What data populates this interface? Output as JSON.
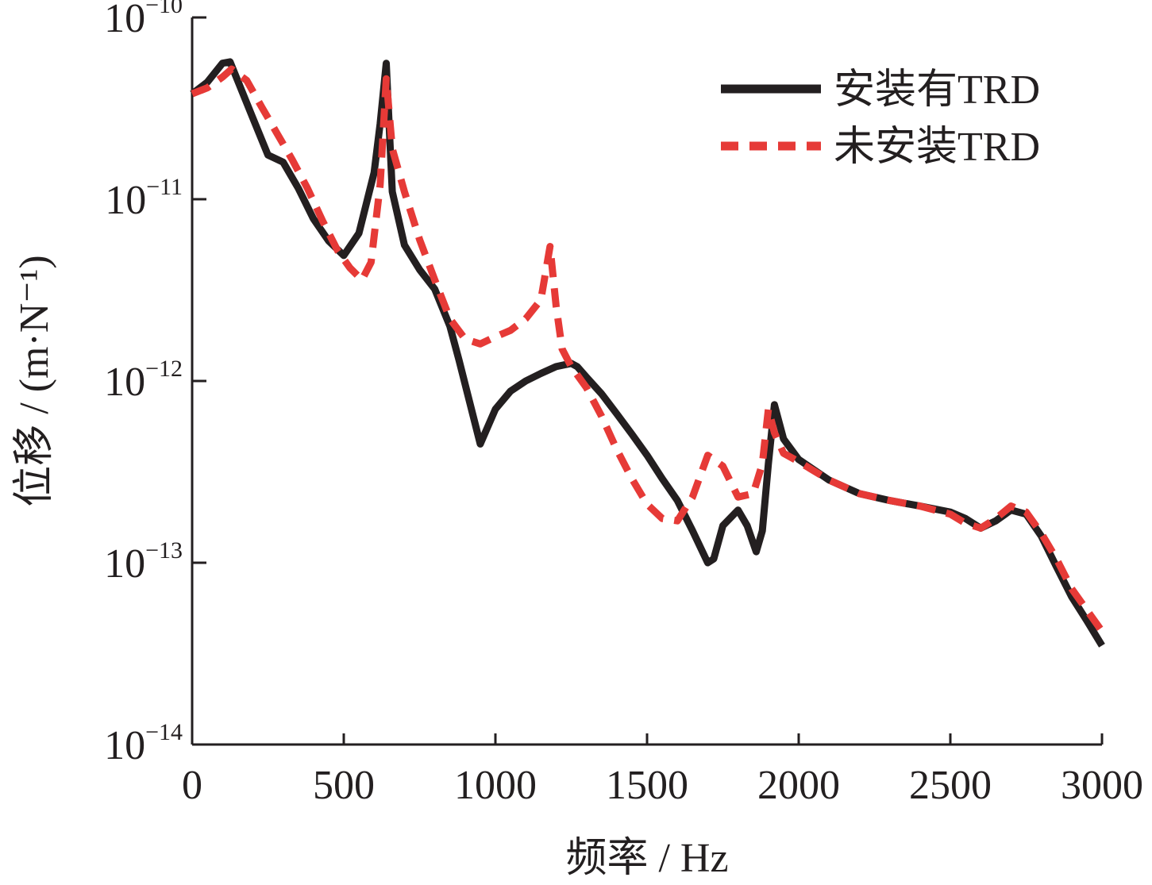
{
  "chart_data": {
    "type": "line",
    "xlabel": "频率 / Hz",
    "ylabel": "位移 / (m·N⁻¹)",
    "xlim": [
      0,
      3000
    ],
    "ylim": [
      1e-14,
      1e-10
    ],
    "yscale": "log",
    "x_ticks": [
      0,
      500,
      1000,
      1500,
      2000,
      2500,
      3000
    ],
    "x_tick_labels": [
      "0",
      "500",
      "1000",
      "1500",
      "2000",
      "2500",
      "3000"
    ],
    "y_ticks": [
      {
        "value": 1e-14,
        "base": "10",
        "exp": "−14"
      },
      {
        "value": 1e-13,
        "base": "10",
        "exp": "−13"
      },
      {
        "value": 1e-12,
        "base": "10",
        "exp": "−12"
      },
      {
        "value": 1e-11,
        "base": "10",
        "exp": "−11"
      },
      {
        "value": 1e-10,
        "base": "10",
        "exp": "−10"
      }
    ],
    "grid": false,
    "legend_position": "top-right",
    "series": [
      {
        "name": "安装有TRD",
        "color": "#231f20",
        "style": "solid",
        "x": [
          0,
          50,
          100,
          125,
          150,
          200,
          250,
          300,
          350,
          400,
          450,
          500,
          550,
          600,
          620,
          640,
          660,
          700,
          750,
          800,
          850,
          880,
          950,
          1000,
          1050,
          1100,
          1150,
          1200,
          1250,
          1270,
          1300,
          1350,
          1400,
          1450,
          1500,
          1550,
          1600,
          1650,
          1700,
          1720,
          1750,
          1800,
          1830,
          1860,
          1880,
          1900,
          1920,
          1950,
          2000,
          2100,
          2200,
          2300,
          2400,
          2500,
          2550,
          2600,
          2650,
          2700,
          2750,
          2800,
          2850,
          2900,
          2950,
          3000
        ],
        "y": [
          3.8e-11,
          4.4e-11,
          5.6e-11,
          5.7e-11,
          4.5e-11,
          2.8e-11,
          1.75e-11,
          1.6e-11,
          1.15e-11,
          7.8e-12,
          5.9e-12,
          4.9e-12,
          6.5e-12,
          1.4e-11,
          2.6e-11,
          5.6e-11,
          1.1e-11,
          5.6e-12,
          4.1e-12,
          3.2e-12,
          2e-12,
          1.3e-12,
          4.5e-13,
          7e-13,
          8.8e-13,
          1e-12,
          1.1e-12,
          1.2e-12,
          1.25e-12,
          1.2e-12,
          1.05e-12,
          8.5e-13,
          6.6e-13,
          5.1e-13,
          3.9e-13,
          2.9e-13,
          2.2e-13,
          1.5e-13,
          1e-13,
          1.05e-13,
          1.6e-13,
          1.95e-13,
          1.6e-13,
          1.15e-13,
          1.5e-13,
          3.5e-13,
          7.4e-13,
          4.8e-13,
          3.7e-13,
          2.85e-13,
          2.4e-13,
          2.2e-13,
          2.05e-13,
          1.9e-13,
          1.75e-13,
          1.55e-13,
          1.7e-13,
          1.95e-13,
          1.85e-13,
          1.4e-13,
          9.5e-14,
          6.5e-14,
          4.8e-14,
          3.5e-14
        ]
      },
      {
        "name": "未安装TRD",
        "color": "#e63a37",
        "style": "dashed",
        "x": [
          0,
          50,
          100,
          130,
          180,
          230,
          280,
          330,
          380,
          430,
          480,
          520,
          560,
          590,
          620,
          640,
          660,
          700,
          750,
          800,
          850,
          900,
          950,
          1000,
          1050,
          1100,
          1150,
          1180,
          1200,
          1220,
          1250,
          1300,
          1350,
          1400,
          1450,
          1500,
          1550,
          1600,
          1650,
          1700,
          1750,
          1800,
          1850,
          1880,
          1900,
          1920,
          1950,
          2000,
          2100,
          2200,
          2300,
          2400,
          2500,
          2550,
          2600,
          2650,
          2700,
          2750,
          2800,
          2850,
          2900,
          2950,
          3000
        ],
        "y": [
          3.8e-11,
          4.1e-11,
          4.7e-11,
          5.2e-11,
          4.5e-11,
          3.2e-11,
          2.3e-11,
          1.65e-11,
          1.15e-11,
          7.6e-12,
          5.2e-12,
          4.2e-12,
          3.6e-12,
          4.5e-12,
          1.2e-11,
          4.6e-11,
          1.9e-11,
          1.1e-11,
          6e-12,
          3.6e-12,
          2.2e-12,
          1.7e-12,
          1.6e-12,
          1.75e-12,
          1.9e-12,
          2.2e-12,
          2.8e-12,
          5.5e-12,
          2.6e-12,
          1.5e-12,
          1.2e-12,
          9.2e-13,
          6.4e-13,
          4.2e-13,
          2.9e-13,
          2.1e-13,
          1.75e-13,
          1.7e-13,
          2.3e-13,
          3.9e-13,
          3.4e-13,
          2.3e-13,
          2.4e-13,
          3.5e-13,
          7e-13,
          5.2e-13,
          4e-13,
          3.6e-13,
          2.85e-13,
          2.4e-13,
          2.2e-13,
          2.05e-13,
          1.85e-13,
          1.65e-13,
          1.55e-13,
          1.75e-13,
          2.05e-13,
          1.9e-13,
          1.45e-13,
          1.05e-13,
          7.2e-14,
          5.5e-14,
          4.2e-14
        ]
      }
    ]
  }
}
